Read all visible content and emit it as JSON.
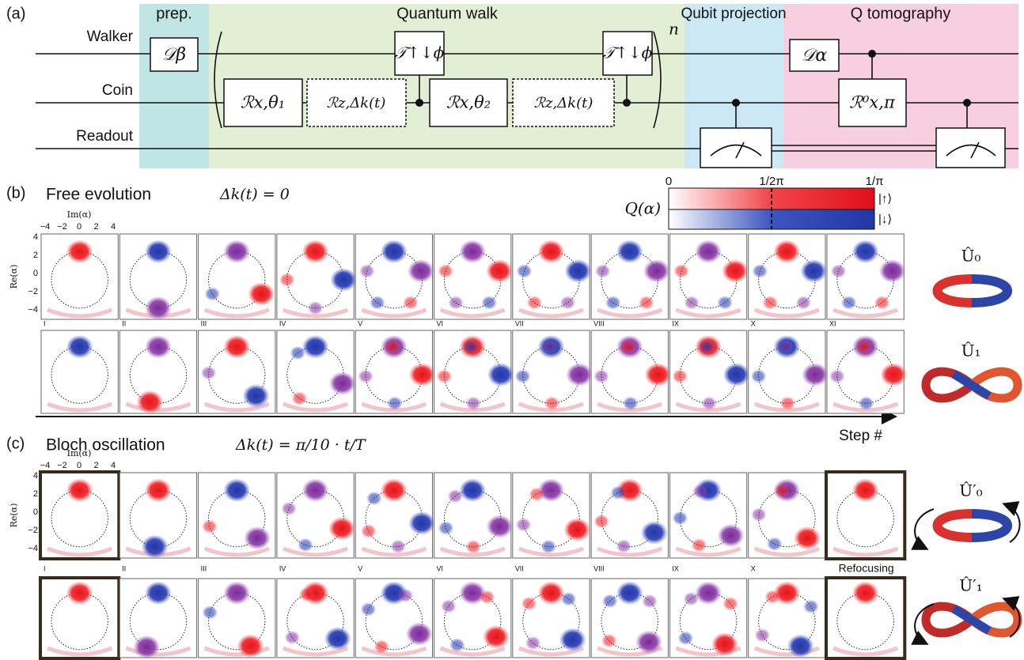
{
  "panel_a": {
    "label": "(a)",
    "sections": [
      "prep.",
      "Quantum walk",
      "Qubit projection",
      "Q tomography"
    ],
    "wires": [
      "Walker",
      "Coin",
      "Readout"
    ],
    "gates": [
      "𝒟β",
      "ℛx,θ₁",
      "ℛz,Δk(t)",
      "𝒯↑↓ϕ",
      "ℛx,θ₂",
      "ℛz,Δk(t)",
      "𝒯↑↓ϕ",
      "𝒟α",
      "ℛ⁰x,π"
    ],
    "repeat": "n"
  },
  "panel_b": {
    "label": "(b)",
    "title": "Free evolution",
    "equation": "Δk(t) = 0",
    "colorbar": {
      "label": "Q(α)",
      "ticks": [
        "0",
        "1/2π",
        "1/π"
      ],
      "states": [
        "|↑⟩",
        "|↓⟩"
      ]
    },
    "steps": [
      "I",
      "II",
      "III",
      "IV",
      "V",
      "VI",
      "VII",
      "VIII",
      "IX",
      "X",
      "XI"
    ],
    "operators": [
      "Û₀",
      "Û₁"
    ]
  },
  "panel_c": {
    "label": "(c)",
    "title": "Bloch oscillation",
    "equation": "Δk(t) = π/10 · t/T",
    "steps": [
      "I",
      "II",
      "III",
      "IV",
      "V",
      "VI",
      "VII",
      "VIII",
      "IX",
      "X",
      "Refocusing"
    ],
    "operators": [
      "Û′₀",
      "Û′₁"
    ]
  },
  "axes": {
    "x_label": "Im(α)",
    "y_label": "Re(α)",
    "x_ticks": [
      "−4",
      "−2",
      "0",
      "2",
      "4"
    ],
    "y_ticks": [
      "4",
      "2",
      "0",
      "−2",
      "−4"
    ]
  },
  "step_axis": "Step #"
}
